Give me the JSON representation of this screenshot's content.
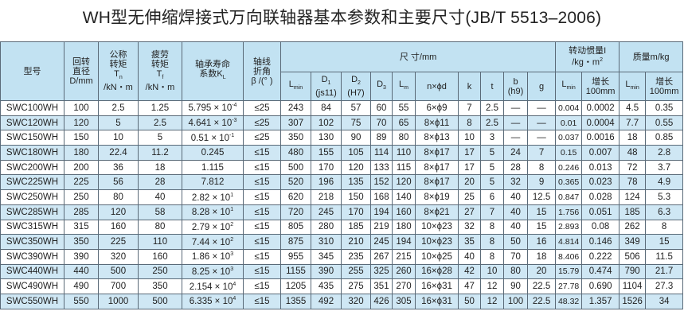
{
  "title": "WH型无伸缩焊接式万向联轴器基本参数和主要尺寸(JB/T 5513–2006)",
  "headers": {
    "model": "型号",
    "diameter": [
      "回转",
      "直径",
      "D/mm"
    ],
    "nominal_torque": [
      "公称",
      "转矩",
      "T",
      "n",
      "/kN・m"
    ],
    "fatigue_torque": [
      "疲劳",
      "转矩",
      "T",
      "f",
      "/kN・m"
    ],
    "bearing_life": [
      "轴承寿命",
      "系数K",
      "L"
    ],
    "angle": [
      "轴线",
      "折角",
      "β /(° )"
    ],
    "dimensions": "尺  寸/mm",
    "inertia": [
      "转动惯量I",
      "/kg・m",
      "2"
    ],
    "mass": "质量m/kg",
    "sub": {
      "lmin": [
        "L",
        "min"
      ],
      "d1": [
        "D",
        "1",
        "(js11)"
      ],
      "d2": [
        "D",
        "2",
        "(H7)"
      ],
      "d3": [
        "D",
        "3"
      ],
      "lm": [
        "L",
        "m"
      ],
      "nd": "n×ϕd",
      "k": "k",
      "t": "t",
      "b": [
        "b",
        "(h9)"
      ],
      "g": "g",
      "inc": [
        "增长",
        "100mm"
      ]
    }
  },
  "rows": [
    [
      "SWC100WH",
      "100",
      "2.5",
      "1.25",
      [
        "5.795",
        "-4"
      ],
      "≤25",
      "243",
      "84",
      "57",
      "60",
      "55",
      "6×ϕ9",
      "7",
      "2.5",
      "—",
      "—",
      "0.004",
      "0.0002",
      "4.5",
      "0.35"
    ],
    [
      "SWC120WH",
      "120",
      "5",
      "2.5",
      [
        "4.641",
        "-3"
      ],
      "≤25",
      "307",
      "102",
      "75",
      "70",
      "65",
      "8×ϕ11",
      "8",
      "2.5",
      "—",
      "—",
      "0.01",
      "0.0004",
      "7.7",
      "0.55"
    ],
    [
      "SWC150WH",
      "150",
      "10",
      "5",
      [
        "0.51",
        "-1"
      ],
      "≤25",
      "350",
      "130",
      "90",
      "89",
      "80",
      "8×ϕ13",
      "10",
      "3",
      "—",
      "—",
      "0.037",
      "0.0016",
      "18",
      "0.85"
    ],
    [
      "SWC180WH",
      "180",
      "22.4",
      "11.2",
      [
        "0.245",
        ""
      ],
      "≤15",
      "480",
      "155",
      "105",
      "114",
      "110",
      "8×ϕ17",
      "17",
      "5",
      "24",
      "7",
      "0.15",
      "0.007",
      "48",
      "2.8"
    ],
    [
      "SWC200WH",
      "200",
      "36",
      "18",
      [
        "1.115",
        ""
      ],
      "≤15",
      "500",
      "170",
      "120",
      "133",
      "115",
      "8×ϕ17",
      "17",
      "5",
      "28",
      "8",
      "0.246",
      "0.013",
      "72",
      "3.7"
    ],
    [
      "SWC225WH",
      "225",
      "56",
      "28",
      [
        "7.812",
        ""
      ],
      "≤15",
      "520",
      "196",
      "135",
      "152",
      "120",
      "8×ϕ17",
      "20",
      "5",
      "32",
      "9",
      "0.365",
      "0.023",
      "78",
      "4.9"
    ],
    [
      "SWC250WH",
      "250",
      "80",
      "40",
      [
        "2.82",
        "1"
      ],
      "≤15",
      "620",
      "218",
      "150",
      "168",
      "140",
      "8×ϕ19",
      "25",
      "6",
      "40",
      "12.5",
      "0.847",
      "0.028",
      "124",
      "5.3"
    ],
    [
      "SWC285WH",
      "285",
      "120",
      "58",
      [
        "8.28",
        "1"
      ],
      "≤15",
      "720",
      "245",
      "170",
      "194",
      "160",
      "8×ϕ21",
      "27",
      "7",
      "40",
      "15",
      "1.756",
      "0.051",
      "185",
      "6.3"
    ],
    [
      "SWC315WH",
      "315",
      "160",
      "80",
      [
        "2.79",
        "2"
      ],
      "≤15",
      "805",
      "280",
      "185",
      "219",
      "180",
      "10×ϕ23",
      "32",
      "8",
      "40",
      "15",
      "2.893",
      "0.08",
      "262",
      "8"
    ],
    [
      "SWC350WH",
      "350",
      "225",
      "110",
      [
        "7.44",
        "2"
      ],
      "≤15",
      "875",
      "310",
      "210",
      "245",
      "194",
      "10×ϕ23",
      "35",
      "8",
      "50",
      "16",
      "4.814",
      "0.146",
      "349",
      "15"
    ],
    [
      "SWC390WH",
      "390",
      "320",
      "160",
      [
        "1.86",
        "3"
      ],
      "≤15",
      "955",
      "345",
      "235",
      "267",
      "215",
      "10×ϕ25",
      "40",
      "8",
      "70",
      "18",
      "8.406",
      "0.222",
      "506",
      "11.5"
    ],
    [
      "SWC440WH",
      "440",
      "500",
      "250",
      [
        "8.25",
        "3"
      ],
      "≤15",
      "1155",
      "390",
      "255",
      "325",
      "260",
      "16×ϕ28",
      "42",
      "10",
      "80",
      "20",
      "15.79",
      "0.474",
      "790",
      "21.7"
    ],
    [
      "SWC490WH",
      "490",
      "700",
      "350",
      [
        "2.154",
        "4"
      ],
      "≤15",
      "1205",
      "435",
      "275",
      "351",
      "270",
      "16×ϕ31",
      "47",
      "12",
      "90",
      "22.5",
      "27.78",
      "0.690",
      "1104",
      "27.3"
    ],
    [
      "SWC550WH",
      "550",
      "1000",
      "500",
      [
        "6.335",
        "4"
      ],
      "≤15",
      "1355",
      "492",
      "320",
      "426",
      "305",
      "16×ϕ31",
      "50",
      "12",
      "100",
      "22.5",
      "48.32",
      "1.357",
      "1526",
      "34"
    ]
  ],
  "colors": {
    "header_bg": "#c2e2f2",
    "alt_row_bg": "#cfe7f4",
    "border": "#5a6a78"
  }
}
